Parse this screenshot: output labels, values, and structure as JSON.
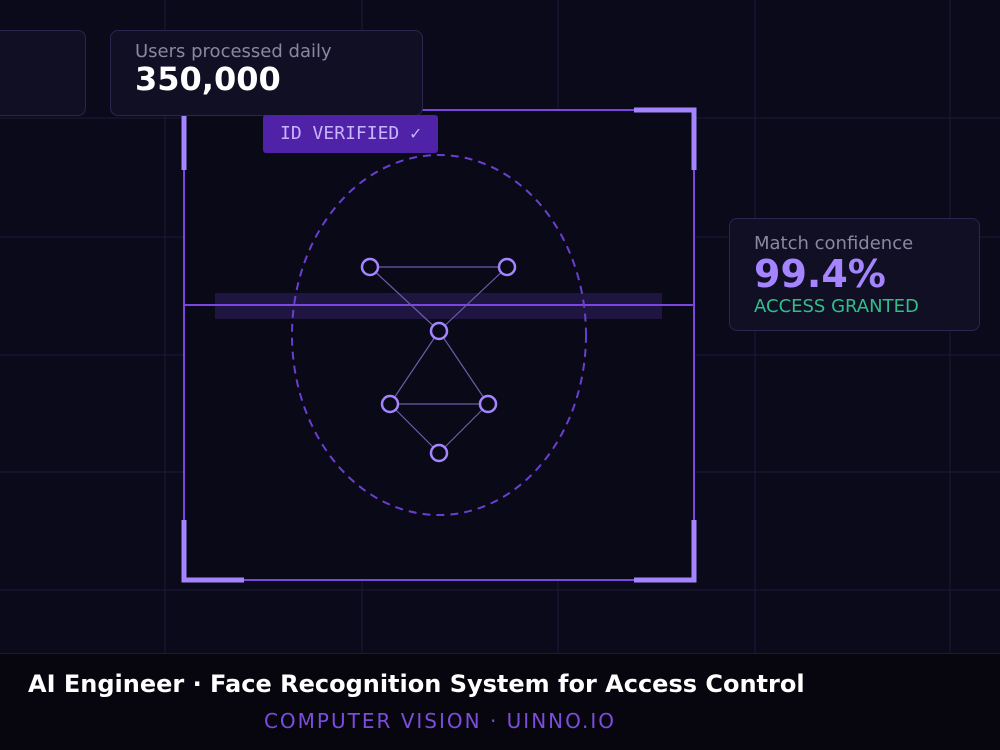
{
  "cards": [
    {
      "label": "Users processed daily",
      "value": "350,000"
    },
    {
      "label": "Match confidence",
      "value": "99.4%",
      "status": "ACCESS GRANTED"
    }
  ],
  "badge": "ID VERIFIED ✓",
  "caption": {
    "title": "AI Engineer · Face Recognition System for Access Control",
    "subtitle": "COMPUTER VISION · UINNO.IO"
  }
}
